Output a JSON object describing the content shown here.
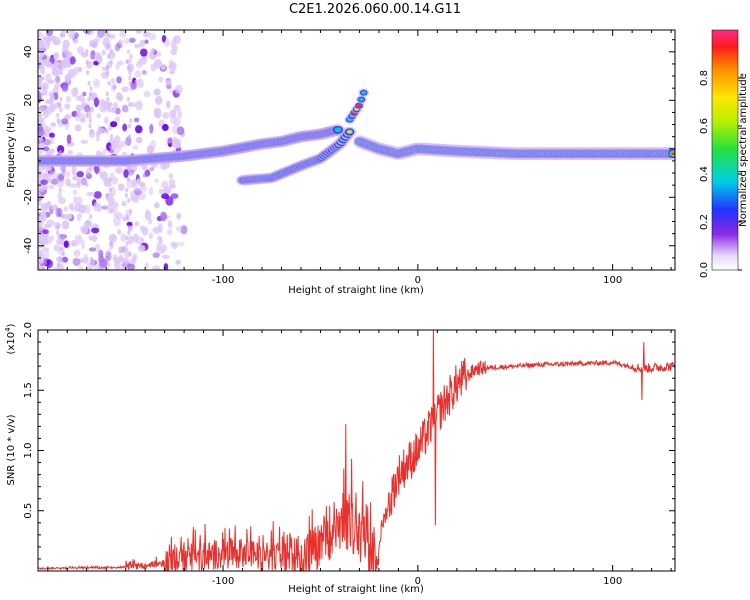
{
  "title": "C2E1.2026.060.00.14.G11",
  "chart_data": [
    {
      "type": "heatmap",
      "name": "spectrogram",
      "xlabel": "Height of straight line (km)",
      "ylabel": "Frequency (Hz)",
      "xlim": [
        -195,
        132
      ],
      "ylim": [
        -50,
        49
      ],
      "xticks": [
        -100,
        0,
        100
      ],
      "yticks": [
        -40,
        -20,
        0,
        20,
        40
      ],
      "colorbar": {
        "label": "Normalized spectral amplitude",
        "range": [
          0.0,
          1.0
        ],
        "ticks": [
          0.0,
          0.2,
          0.4,
          0.6,
          0.8
        ]
      },
      "features": [
        {
          "name": "main-doppler-trace",
          "points": [
            [
              -195,
              -5
            ],
            [
              -150,
              -5
            ],
            [
              -120,
              -3
            ],
            [
              -100,
              -1
            ],
            [
              -80,
              2
            ],
            [
              -70,
              3
            ],
            [
              -60,
              5
            ],
            [
              -50,
              6
            ],
            [
              -40,
              8
            ]
          ]
        },
        {
          "name": "secondary-trace",
          "points": [
            [
              -90,
              -13
            ],
            [
              -75,
              -12
            ],
            [
              -60,
              -7
            ],
            [
              -50,
              -4
            ],
            [
              -40,
              2
            ],
            [
              -35,
              7
            ]
          ]
        },
        {
          "name": "upper-fragment",
          "points": [
            [
              -35,
              12
            ],
            [
              -30,
              18
            ],
            [
              -27,
              25
            ]
          ]
        },
        {
          "name": "post-occultation-trace",
          "points": [
            [
              -30,
              3
            ],
            [
              -20,
              0
            ],
            [
              -10,
              -2
            ],
            [
              0,
              0
            ],
            [
              20,
              -1
            ],
            [
              50,
              -2
            ],
            [
              100,
              -2
            ],
            [
              132,
              -2
            ]
          ]
        }
      ]
    },
    {
      "type": "line",
      "name": "snr",
      "xlabel": "Height of straight line (km)",
      "ylabel": "SNR (10 * v/v)",
      "scale_label": "(x10",
      "scale_exponent": "4",
      "xlim": [
        -195,
        132
      ],
      "ylim": [
        0,
        2.0
      ],
      "xticks": [
        -100,
        0,
        100
      ],
      "yticks": [
        0.5,
        1.0,
        1.5,
        2.0
      ],
      "ytick_labels": [
        "0.5",
        "1.0",
        "1.5",
        "2.0"
      ],
      "color": "#e8312c",
      "anchors": [
        {
          "x": -195,
          "y": 0.02
        },
        {
          "x": -150,
          "y": 0.03
        },
        {
          "x": -120,
          "y": 0.08
        },
        {
          "x": -100,
          "y": 0.15
        },
        {
          "x": -80,
          "y": 0.12
        },
        {
          "x": -60,
          "y": 0.1
        },
        {
          "x": -45,
          "y": 0.25
        },
        {
          "x": -35,
          "y": 0.4
        },
        {
          "x": -28,
          "y": 0.25
        },
        {
          "x": -22,
          "y": 0.05
        },
        {
          "x": -18,
          "y": 0.4
        },
        {
          "x": -10,
          "y": 0.8
        },
        {
          "x": 0,
          "y": 1.0
        },
        {
          "x": 10,
          "y": 1.3
        },
        {
          "x": 20,
          "y": 1.55
        },
        {
          "x": 30,
          "y": 1.68
        },
        {
          "x": 60,
          "y": 1.71
        },
        {
          "x": 100,
          "y": 1.73
        },
        {
          "x": 115,
          "y": 1.68
        },
        {
          "x": 132,
          "y": 1.7
        }
      ],
      "spikes": [
        {
          "x": -37,
          "y": 1.22
        },
        {
          "x": -34,
          "y": 0.93
        },
        {
          "x": 8,
          "y": 2.0
        },
        {
          "x": 9,
          "y": 0.38
        },
        {
          "x": 115,
          "y": 1.42
        },
        {
          "x": 116,
          "y": 1.9
        }
      ]
    }
  ]
}
